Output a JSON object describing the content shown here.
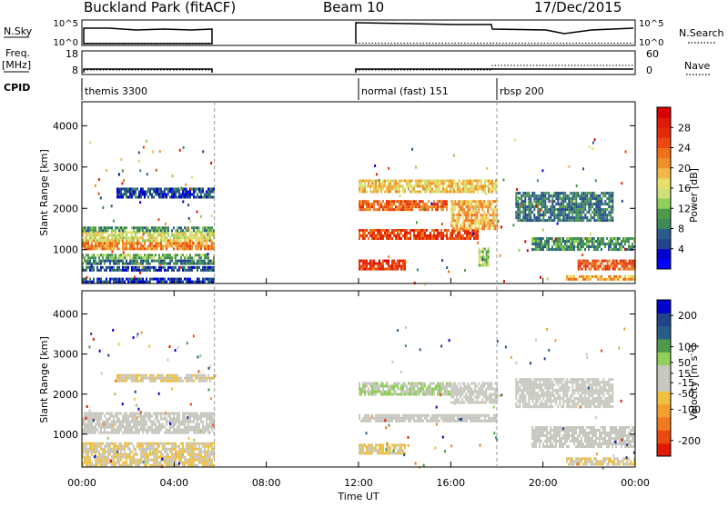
{
  "header": {
    "site": "Buckland Park (fitACF)",
    "beam": "Beam 10",
    "date": "17/Dec/2015"
  },
  "panels": {
    "nsky": {
      "label": "N.Sky",
      "ticks": [
        "10^5",
        "10^0"
      ]
    },
    "nsearch": {
      "label": "N.Search",
      "ticks": [
        "10^5",
        "10^0"
      ]
    },
    "freq": {
      "label_lines": [
        "Freq.",
        "[MHz]"
      ],
      "ticks": [
        "18",
        "8"
      ]
    },
    "nave": {
      "label": "Nave",
      "ticks": [
        "60",
        "0"
      ]
    },
    "cpid": {
      "label": "CPID",
      "modes": [
        {
          "name": "themis 3300",
          "start_h": 0
        },
        {
          "name": "normal (fast) 151",
          "start_h": 12
        },
        {
          "name": "rbsp 200",
          "start_h": 18
        }
      ]
    }
  },
  "chart_data": {
    "type": "heatmap",
    "x_axis": {
      "label": "Time UT",
      "range_h": [
        0,
        24
      ],
      "ticks": [
        {
          "h": 0,
          "label": "00:00"
        },
        {
          "h": 4,
          "label": "04:00"
        },
        {
          "h": 8,
          "label": "08:00"
        },
        {
          "h": 12,
          "label": "12:00"
        },
        {
          "h": 16,
          "label": "16:00"
        },
        {
          "h": 20,
          "label": "20:00"
        },
        {
          "h": 24,
          "label": "00:00"
        }
      ]
    },
    "data_gap_h": [
      5.75,
      12.0
    ],
    "mode_change_h": 18.0,
    "power": {
      "ylabel": "Slant Range [km]",
      "yrange_km": [
        180,
        4580
      ],
      "yticks": [
        1000,
        2000,
        3000,
        4000
      ],
      "colorbar": {
        "label": "Power [dB]",
        "tick_labels": [
          "28",
          "24",
          "20",
          "16",
          "12",
          "8",
          "4"
        ],
        "tick_values": [
          28,
          24,
          20,
          16,
          12,
          8,
          4
        ],
        "range": [
          0,
          32
        ],
        "colors": [
          "#0000ff",
          "#0000cc",
          "#224488",
          "#2a5c8a",
          "#3e8a5a",
          "#4e9a4a",
          "#8fcf5a",
          "#cde07a",
          "#e8e06a",
          "#f2b84a",
          "#f0902a",
          "#ee7018",
          "#ea4a10",
          "#e62a08",
          "#e01a04",
          "#d80000"
        ]
      },
      "bands": [
        {
          "t0": 0.0,
          "t1": 5.75,
          "r0": 1050,
          "r1": 1250,
          "level": 22
        },
        {
          "t0": 0.0,
          "t1": 5.75,
          "r0": 1250,
          "r1": 1450,
          "level": 16
        },
        {
          "t0": 0.0,
          "t1": 5.75,
          "r0": 1450,
          "r1": 1560,
          "level": 10
        },
        {
          "t0": 0.0,
          "t1": 5.75,
          "r0": 820,
          "r1": 900,
          "level": 12
        },
        {
          "t0": 0.0,
          "t1": 5.75,
          "r0": 660,
          "r1": 760,
          "level": 8
        },
        {
          "t0": 0.0,
          "t1": 5.75,
          "r0": 500,
          "r1": 600,
          "level": 6
        },
        {
          "t0": 0.0,
          "t1": 5.75,
          "r0": 250,
          "r1": 320,
          "level": 5
        },
        {
          "t0": 1.5,
          "t1": 5.75,
          "r0": 2300,
          "r1": 2500,
          "level": 5
        },
        {
          "t0": 12.0,
          "t1": 15.8,
          "r0": 2000,
          "r1": 2200,
          "level": 24
        },
        {
          "t0": 12.0,
          "t1": 17.2,
          "r0": 1300,
          "r1": 1500,
          "level": 26
        },
        {
          "t0": 12.0,
          "t1": 14.0,
          "r0": 520,
          "r1": 760,
          "level": 27
        },
        {
          "t0": 16.0,
          "t1": 18.0,
          "r0": 1500,
          "r1": 2200,
          "level": 20
        },
        {
          "t0": 17.2,
          "t1": 17.6,
          "r0": 650,
          "r1": 1050,
          "level": 14
        },
        {
          "t0": 12.0,
          "t1": 18.0,
          "r0": 2400,
          "r1": 2700,
          "level": 18
        },
        {
          "t0": 18.8,
          "t1": 23.0,
          "r0": 1700,
          "r1": 2400,
          "level": 8
        },
        {
          "t0": 19.5,
          "t1": 24.0,
          "r0": 1000,
          "r1": 1300,
          "level": 10
        },
        {
          "t0": 21.5,
          "t1": 24.0,
          "r0": 560,
          "r1": 760,
          "level": 25
        },
        {
          "t0": 21.0,
          "t1": 24.0,
          "r0": 250,
          "r1": 380,
          "level": 20
        }
      ]
    },
    "velocity": {
      "ylabel": "Slant Range [km]",
      "yrange_km": [
        180,
        4580
      ],
      "yticks": [
        1000,
        2000,
        3000,
        4000
      ],
      "colorbar": {
        "label": "Velocity [m s^-1]",
        "tick_labels": [
          "200",
          "100",
          "50",
          "15",
          "-15",
          "-50",
          "-100",
          "-200"
        ],
        "tick_values": [
          200,
          100,
          50,
          15,
          -15,
          -50,
          -100,
          -200
        ],
        "range": [
          -250,
          250
        ],
        "colors": [
          "#e01a04",
          "#ea4a10",
          "#f07a20",
          "#f2a030",
          "#f0c040",
          "#c8c8c0",
          "#c8c8c0",
          "#8fcf5a",
          "#4e9a4a",
          "#2a5c8a",
          "#224488",
          "#0000cc"
        ]
      },
      "bands": [
        {
          "t0": 0.0,
          "t1": 5.75,
          "r0": 1050,
          "r1": 1550,
          "level": 0
        },
        {
          "t0": 0.0,
          "t1": 5.75,
          "r0": 250,
          "r1": 800,
          "level": -40
        },
        {
          "t0": 1.5,
          "t1": 5.75,
          "r0": 2300,
          "r1": 2500,
          "level": -30
        },
        {
          "t0": 12.0,
          "t1": 18.0,
          "r0": 1300,
          "r1": 1500,
          "level": 0
        },
        {
          "t0": 12.0,
          "t1": 16.0,
          "r0": 2000,
          "r1": 2300,
          "level": 40
        },
        {
          "t0": 12.0,
          "t1": 14.0,
          "r0": 520,
          "r1": 760,
          "level": -45
        },
        {
          "t0": 16.0,
          "t1": 18.0,
          "r0": 1800,
          "r1": 2300,
          "level": 0
        },
        {
          "t0": 18.8,
          "t1": 23.0,
          "r0": 1700,
          "r1": 2400,
          "level": 0
        },
        {
          "t0": 19.5,
          "t1": 24.0,
          "r0": 700,
          "r1": 1200,
          "level": 0
        },
        {
          "t0": 21.0,
          "t1": 24.0,
          "r0": 250,
          "r1": 420,
          "level": -40
        }
      ]
    }
  }
}
